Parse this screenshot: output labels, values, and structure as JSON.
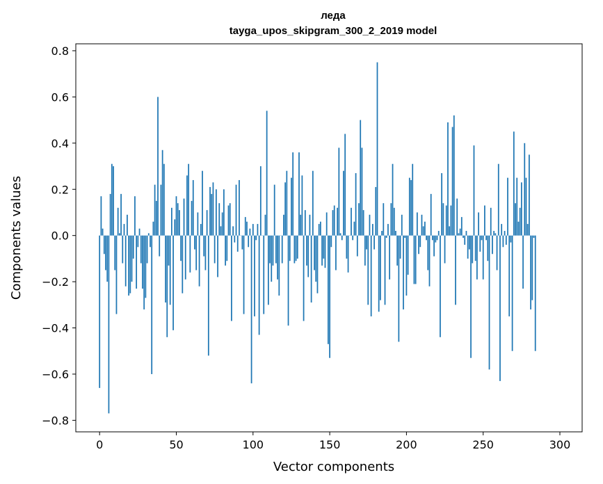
{
  "chart_data": {
    "type": "bar",
    "title": "леда",
    "subtitle": "tayga_upos_skipgram_300_2_2019 model",
    "xlabel": "Vector components",
    "ylabel": "Components values",
    "xlim": [
      -15.5,
      314.5
    ],
    "ylim": [
      -0.85,
      0.83
    ],
    "xticks": [
      0,
      50,
      100,
      150,
      200,
      250,
      300
    ],
    "xtick_labels": [
      "0",
      "50",
      "100",
      "150",
      "200",
      "250",
      "300"
    ],
    "yticks": [
      -0.8,
      -0.6,
      -0.4,
      -0.2,
      0.0,
      0.2,
      0.4,
      0.6,
      0.8
    ],
    "ytick_labels": [
      "−0.8",
      "−0.6",
      "−0.4",
      "−0.2",
      "0.0",
      "0.2",
      "0.4",
      "0.6",
      "0.8"
    ],
    "bar_color": "#1f77b4",
    "grid": false,
    "values": [
      -0.66,
      0.17,
      0.03,
      -0.08,
      -0.15,
      -0.2,
      -0.77,
      0.18,
      0.31,
      0.3,
      -0.15,
      -0.34,
      0.12,
      0.01,
      0.18,
      -0.12,
      0.05,
      -0.22,
      0.09,
      -0.26,
      -0.25,
      -0.2,
      -0.1,
      0.17,
      -0.23,
      -0.05,
      0.03,
      -0.12,
      -0.23,
      -0.32,
      -0.27,
      -0.12,
      0.01,
      -0.05,
      -0.6,
      0.06,
      0.22,
      0.15,
      0.6,
      -0.09,
      0.22,
      0.37,
      0.31,
      -0.29,
      -0.44,
      -0.13,
      -0.3,
      0.12,
      -0.41,
      0.07,
      0.17,
      0.14,
      0.11,
      -0.11,
      -0.25,
      0.16,
      -0.19,
      0.26,
      0.31,
      -0.16,
      0.15,
      0.24,
      -0.06,
      -0.15,
      0.1,
      -0.22,
      0.05,
      0.28,
      -0.09,
      -0.15,
      0.11,
      -0.52,
      0.21,
      0.18,
      0.23,
      -0.12,
      0.2,
      -0.18,
      0.14,
      0.04,
      0.1,
      0.2,
      -0.13,
      -0.11,
      0.13,
      0.14,
      -0.37,
      0.04,
      -0.03,
      0.22,
      -0.07,
      0.24,
      0.0,
      -0.06,
      -0.34,
      0.08,
      0.06,
      -0.05,
      0.03,
      -0.64,
      0.05,
      -0.35,
      -0.02,
      0.05,
      -0.43,
      0.3,
      0.0,
      -0.34,
      0.09,
      0.54,
      -0.3,
      -0.12,
      -0.2,
      -0.13,
      0.22,
      -0.12,
      -0.19,
      -0.26,
      0.0,
      -0.12,
      0.09,
      0.23,
      0.28,
      -0.39,
      -0.11,
      0.25,
      0.36,
      -0.12,
      -0.11,
      -0.1,
      0.36,
      0.09,
      0.26,
      -0.37,
      0.11,
      -0.13,
      -0.18,
      0.09,
      -0.29,
      0.28,
      -0.15,
      -0.2,
      -0.25,
      0.05,
      0.06,
      -0.13,
      -0.1,
      -0.14,
      0.1,
      -0.47,
      -0.53,
      -0.05,
      0.11,
      0.13,
      -0.15,
      0.12,
      0.38,
      0.01,
      -0.02,
      0.28,
      0.44,
      -0.1,
      -0.16,
      0.0,
      0.12,
      -0.02,
      0.06,
      0.27,
      -0.09,
      0.14,
      0.5,
      0.38,
      0.11,
      -0.13,
      -0.06,
      -0.3,
      0.09,
      -0.35,
      0.05,
      -0.06,
      0.21,
      0.75,
      -0.33,
      -0.28,
      0.02,
      0.14,
      -0.3,
      -0.01,
      0.05,
      -0.19,
      0.14,
      0.31,
      0.12,
      0.02,
      -0.13,
      -0.46,
      -0.1,
      0.09,
      -0.32,
      -0.01,
      -0.26,
      -0.17,
      0.25,
      0.24,
      0.31,
      -0.21,
      -0.21,
      0.1,
      -0.08,
      -0.05,
      0.09,
      0.04,
      0.06,
      -0.02,
      -0.15,
      -0.22,
      0.18,
      -0.02,
      -0.09,
      -0.03,
      -0.02,
      0.02,
      -0.44,
      0.27,
      0.14,
      -0.12,
      0.13,
      0.49,
      0.04,
      0.13,
      0.47,
      0.52,
      -0.3,
      0.16,
      0.01,
      0.03,
      0.08,
      -0.01,
      -0.04,
      0.02,
      -0.1,
      -0.06,
      -0.53,
      -0.12,
      0.39,
      -0.11,
      -0.19,
      0.1,
      -0.07,
      -0.02,
      -0.19,
      0.13,
      -0.02,
      -0.11,
      -0.58,
      0.12,
      -0.08,
      0.02,
      0.01,
      -0.15,
      0.31,
      -0.63,
      0.05,
      -0.05,
      0.02,
      -0.04,
      0.25,
      -0.35,
      -0.03,
      -0.5,
      0.45,
      0.14,
      0.25,
      0.06,
      0.12,
      0.23,
      -0.23,
      0.4,
      0.25,
      0.05,
      0.35,
      -0.32,
      -0.28,
      -0.01,
      -0.5
    ]
  }
}
